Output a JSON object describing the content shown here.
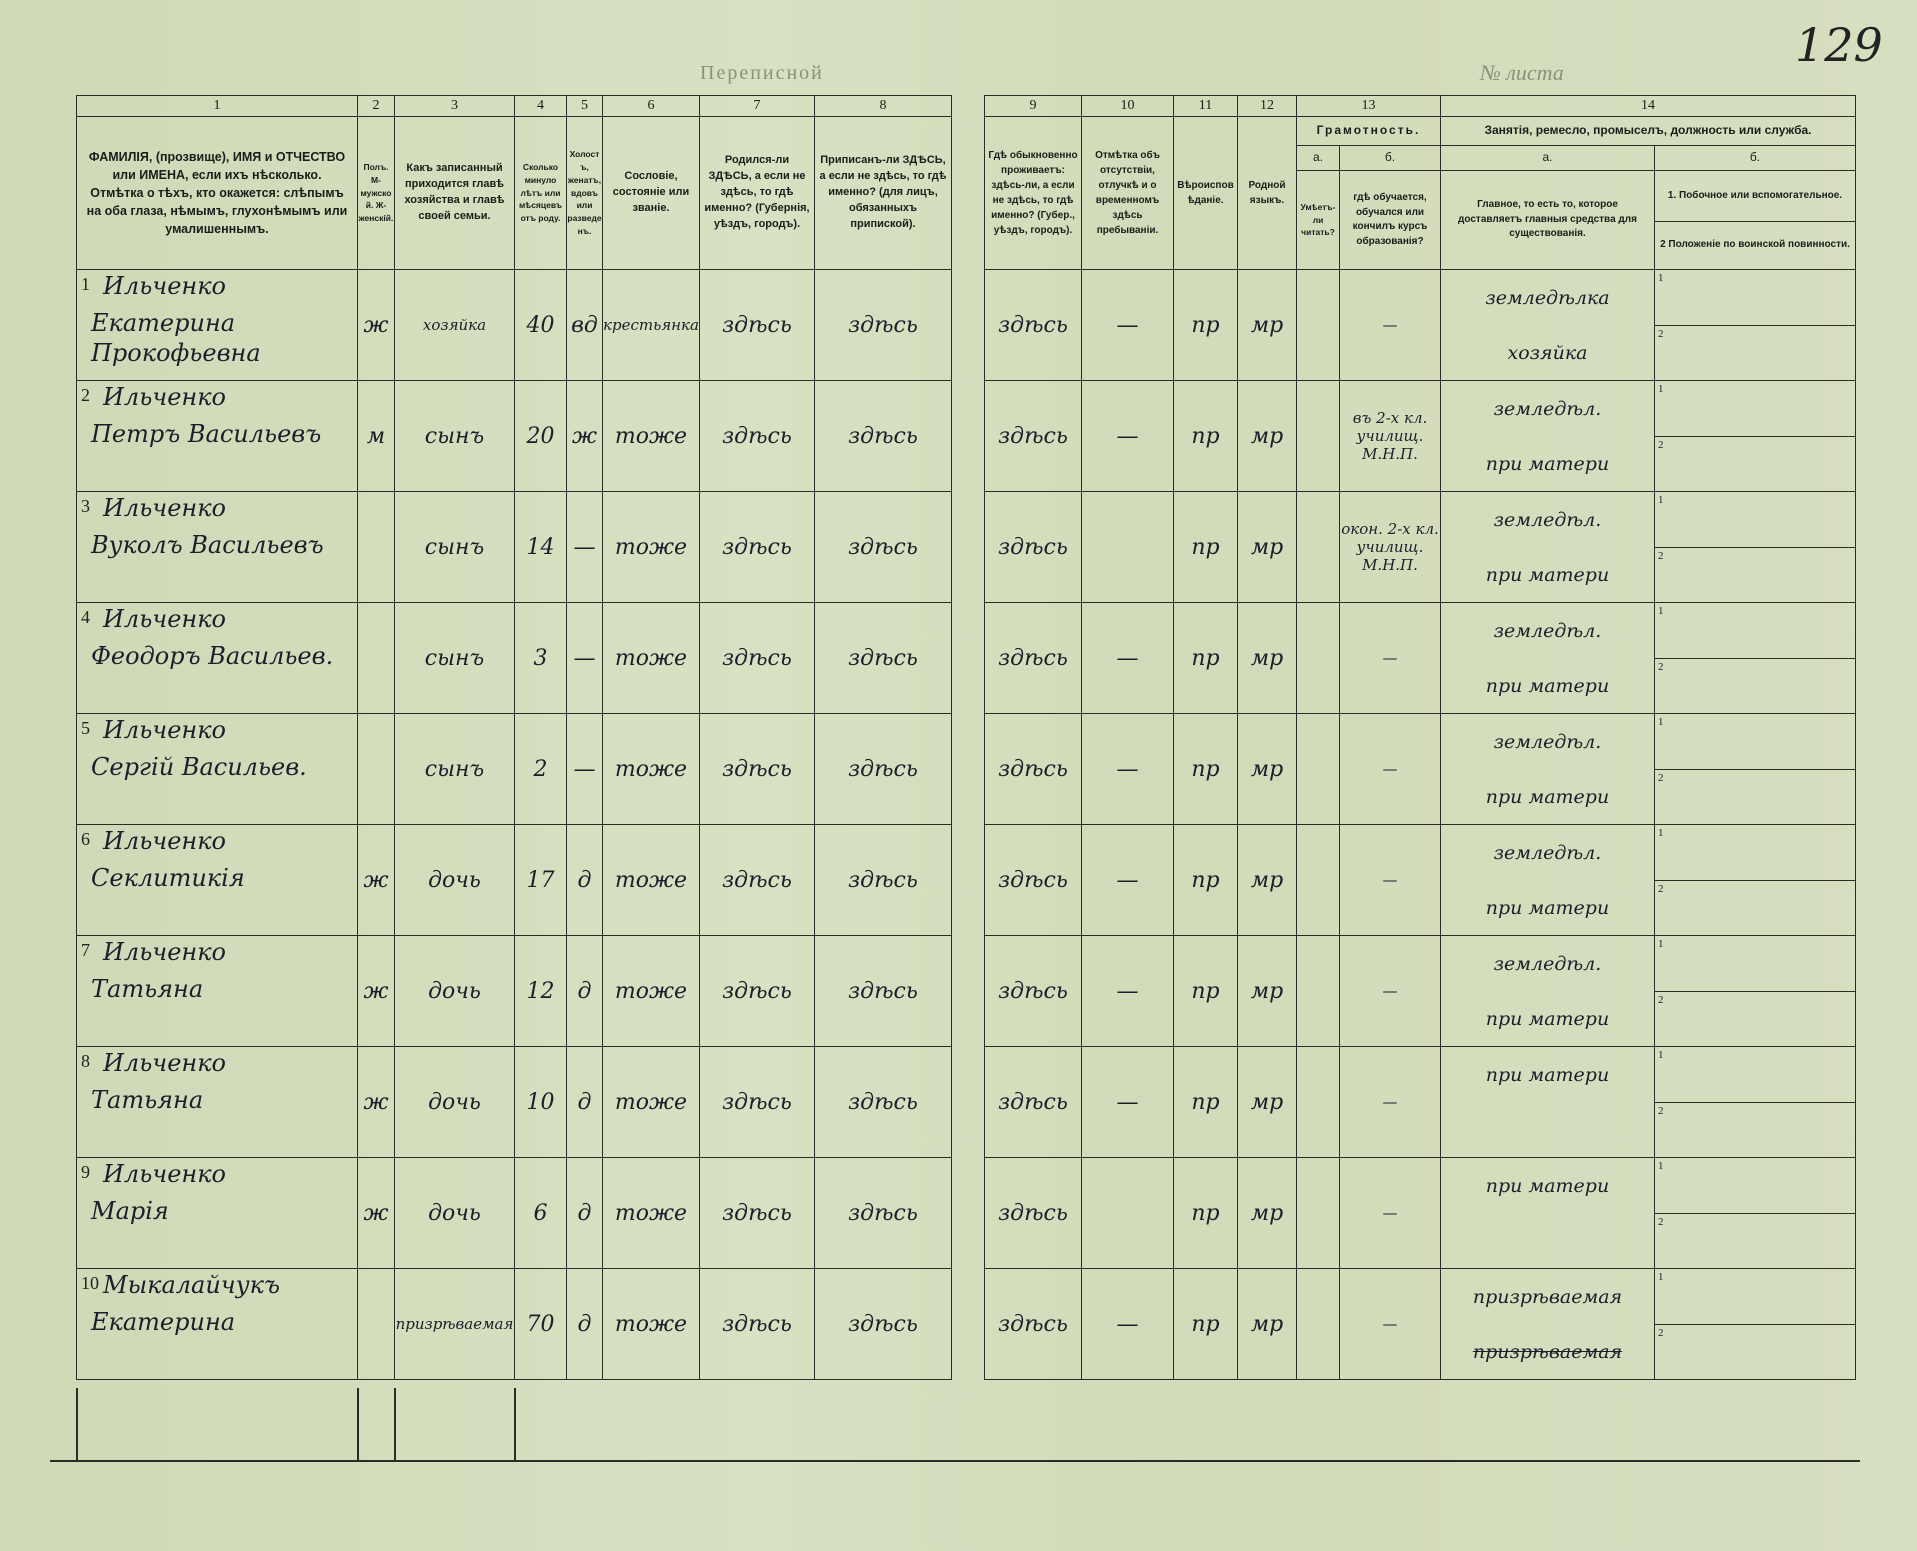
{
  "page_number": "129",
  "faint_top_text": "Переписной",
  "faint_top_right": "№ листа",
  "column_numbers": [
    "1",
    "2",
    "3",
    "4",
    "5",
    "6",
    "7",
    "8",
    "",
    "9",
    "10",
    "11",
    "12",
    "13",
    "14"
  ],
  "headers": {
    "c1": "ФАМИЛІЯ, (прозвище), ИМЯ и ОТЧЕСТВО или ИМЕНА, если ихъ нѣсколько. Отмѣтка о тѣхъ, кто окажется: слѣпымъ на оба глаза, нѣмымъ, глухонѣмымъ или умалишеннымъ.",
    "c2": "Полъ. М-мужской. Ж-женскій.",
    "c3": "Какъ записанный приходится главѣ хозяйства и главѣ своей семьи.",
    "c4": "Сколько минуло лѣтъ или мѣсяцевъ отъ роду.",
    "c5": "Холостъ, женатъ, вдовъ или разведенъ.",
    "c6": "Сословіе, состояніе или званіе.",
    "c7": "Родился-ли ЗДѢСЬ, а если не здѣсь, то гдѣ именно? (Губернія, уѣздъ, городъ).",
    "c8": "Приписанъ-ли ЗДѢСЬ, а если не здѣсь, то гдѣ именно? (для лицъ, обязанныхъ припиской).",
    "c9": "Гдѣ обыкновенно проживаетъ: здѣсь-ли, а если не здѣсь, то гдѣ именно? (Губер., уѣздъ, городъ).",
    "c10": "Отмѣтка объ отсутствіи, отлучкѣ и о временномъ здѣсь пребываніи.",
    "c11": "Вѣроисповѣданіе.",
    "c12": "Родной языкъ.",
    "c13_title": "Грамотность.",
    "c13a_label": "а.",
    "c13b_label": "б.",
    "c13a": "Умѣетъ-ли читать?",
    "c13b": "гдѣ обучается, обучался или кончилъ курсъ образованія?",
    "c14_title": "Занятія, ремесло, промыселъ, должность или служба.",
    "c14a_label": "а.",
    "c14b_label": "б.",
    "c14a": "Главное, то есть то, которое доставляетъ главныя средства для существованія.",
    "c14b1": "1. Побочное или вспомогательное.",
    "c14b2": "2 Положеніе по воинской повинности."
  },
  "sub_labels": [
    "1",
    "2"
  ],
  "rows": [
    {
      "n": "1",
      "surname": "Ильченко",
      "given": "Екатерина Прокофьевна",
      "sex": "ж",
      "relation": "хозяйка",
      "age": "40",
      "marital": "вд",
      "estate": "крестьянка",
      "born": "здѣсь",
      "registered": "здѣсь",
      "resides": "здѣсь",
      "absence": "—",
      "religion": "пр",
      "language": "мр",
      "literate": "",
      "education": "—",
      "occ1": "земледѣлка",
      "occ2": "хозяйка"
    },
    {
      "n": "2",
      "surname": "Ильченко",
      "given": "Петръ Васильевъ",
      "sex": "м",
      "relation": "сынъ",
      "age": "20",
      "marital": "ж",
      "estate": "тоже",
      "born": "здѣсь",
      "registered": "здѣсь",
      "resides": "здѣсь",
      "absence": "—",
      "religion": "пр",
      "language": "мр",
      "literate": "",
      "education": "въ 2-х кл. училищ. М.Н.П.",
      "occ1": "земледѣл.",
      "occ2": "при матери"
    },
    {
      "n": "3",
      "surname": "Ильченко",
      "given": "Вуколъ Васильевъ",
      "sex": "",
      "relation": "сынъ",
      "age": "14",
      "marital": "—",
      "estate": "тоже",
      "born": "здѣсь",
      "registered": "здѣсь",
      "resides": "здѣсь",
      "absence": "",
      "religion": "пр",
      "language": "мр",
      "literate": "",
      "education": "окон. 2-х кл. училищ. М.Н.П.",
      "occ1": "земледѣл.",
      "occ2": "при матери"
    },
    {
      "n": "4",
      "surname": "Ильченко",
      "given": "Феодоръ Васильев.",
      "sex": "",
      "relation": "сынъ",
      "age": "3",
      "marital": "—",
      "estate": "тоже",
      "born": "здѣсь",
      "registered": "здѣсь",
      "resides": "здѣсь",
      "absence": "—",
      "religion": "пр",
      "language": "мр",
      "literate": "",
      "education": "—",
      "occ1": "земледѣл.",
      "occ2": "при матери"
    },
    {
      "n": "5",
      "surname": "Ильченко",
      "given": "Сергій Васильев.",
      "sex": "",
      "relation": "сынъ",
      "age": "2",
      "marital": "—",
      "estate": "тоже",
      "born": "здѣсь",
      "registered": "здѣсь",
      "resides": "здѣсь",
      "absence": "—",
      "religion": "пр",
      "language": "мр",
      "literate": "",
      "education": "—",
      "occ1": "земледѣл.",
      "occ2": "при матери"
    },
    {
      "n": "6",
      "surname": "Ильченко",
      "given": "Секлитикія",
      "sex": "ж",
      "relation": "дочь",
      "age": "17",
      "marital": "д",
      "estate": "тоже",
      "born": "здѣсь",
      "registered": "здѣсь",
      "resides": "здѣсь",
      "absence": "—",
      "religion": "пр",
      "language": "мр",
      "literate": "",
      "education": "—",
      "occ1": "земледѣл.",
      "occ2": "при матери"
    },
    {
      "n": "7",
      "surname": "Ильченко",
      "given": "Татьяна",
      "sex": "ж",
      "relation": "дочь",
      "age": "12",
      "marital": "д",
      "estate": "тоже",
      "born": "здѣсь",
      "registered": "здѣсь",
      "resides": "здѣсь",
      "absence": "—",
      "religion": "пр",
      "language": "мр",
      "literate": "",
      "education": "—",
      "occ1": "земледѣл.",
      "occ2": "при матери"
    },
    {
      "n": "8",
      "surname": "Ильченко",
      "given": "Татьяна",
      "sex": "ж",
      "relation": "дочь",
      "age": "10",
      "marital": "д",
      "estate": "тоже",
      "born": "здѣсь",
      "registered": "здѣсь",
      "resides": "здѣсь",
      "absence": "—",
      "religion": "пр",
      "language": "мр",
      "literate": "",
      "education": "—",
      "occ1": "при матери",
      "occ2": ""
    },
    {
      "n": "9",
      "surname": "Ильченко",
      "given": "Марія",
      "sex": "ж",
      "relation": "дочь",
      "age": "6",
      "marital": "д",
      "estate": "тоже",
      "born": "здѣсь",
      "registered": "здѣсь",
      "resides": "здѣсь",
      "absence": "",
      "religion": "пр",
      "language": "мр",
      "literate": "",
      "education": "—",
      "occ1": "при матери",
      "occ2": ""
    },
    {
      "n": "10",
      "surname": "Мыкалайчукъ",
      "given": "Екатерина",
      "sex": "",
      "relation": "призрѣваемая",
      "age": "70",
      "marital": "д",
      "estate": "тоже",
      "born": "здѣсь",
      "registered": "здѣсь",
      "resides": "здѣсь",
      "absence": "—",
      "religion": "пр",
      "language": "мр",
      "literate": "",
      "education": "—",
      "occ1": "призрѣваемая",
      "occ2": "призрѣваемая"
    }
  ]
}
